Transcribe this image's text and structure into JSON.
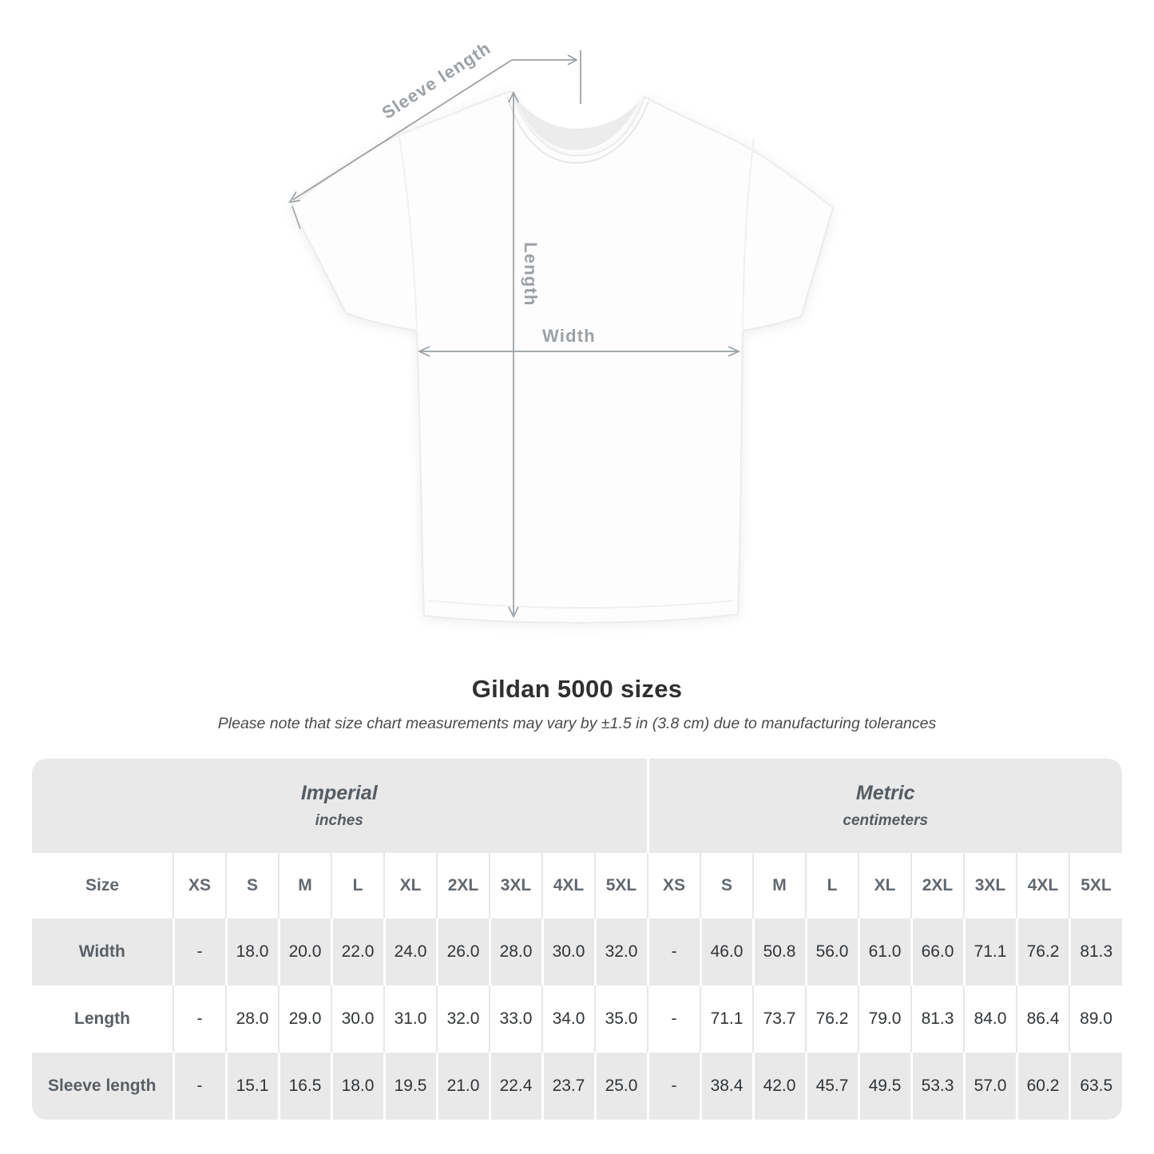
{
  "diagram": {
    "sleeve_length_label": "Sleeve length",
    "length_label": "Length",
    "width_label": "Width"
  },
  "title": "Gildan 5000 sizes",
  "subtitle": "Please note that size chart measurements may vary by ±1.5 in (3.8 cm) due to manufacturing tolerances",
  "table": {
    "corner_label": "Size",
    "unit_groups": [
      {
        "label": "Imperial",
        "sublabel": "inches"
      },
      {
        "label": "Metric",
        "sublabel": "centimeters"
      }
    ],
    "sizes": [
      "XS",
      "S",
      "M",
      "L",
      "XL",
      "2XL",
      "3XL",
      "4XL",
      "5XL"
    ],
    "rows": [
      {
        "label": "Width",
        "imperial": [
          "-",
          "18.0",
          "20.0",
          "22.0",
          "24.0",
          "26.0",
          "28.0",
          "30.0",
          "32.0"
        ],
        "metric": [
          "-",
          "46.0",
          "50.8",
          "56.0",
          "61.0",
          "66.0",
          "71.1",
          "76.2",
          "81.3"
        ]
      },
      {
        "label": "Length",
        "imperial": [
          "-",
          "28.0",
          "29.0",
          "30.0",
          "31.0",
          "32.0",
          "33.0",
          "34.0",
          "35.0"
        ],
        "metric": [
          "-",
          "71.1",
          "73.7",
          "76.2",
          "79.0",
          "81.3",
          "84.0",
          "86.4",
          "89.0"
        ]
      },
      {
        "label": "Sleeve length",
        "imperial": [
          "-",
          "15.1",
          "16.5",
          "18.0",
          "19.5",
          "21.0",
          "22.4",
          "23.7",
          "25.0"
        ],
        "metric": [
          "-",
          "38.4",
          "42.0",
          "45.7",
          "49.5",
          "53.3",
          "57.0",
          "60.2",
          "63.5"
        ]
      }
    ]
  },
  "colors": {
    "table_band": "#e9e9ea",
    "row_divider_on_band": "#ffffff",
    "row_divider_on_white": "#e7e7e8",
    "header_text": "#5d6368",
    "value_text": "#303437",
    "diagram_line": "#9aa0a4",
    "diagram_label": "#9da1a5"
  },
  "chart_data": {
    "type": "table",
    "title": "Gildan 5000 sizes",
    "note": "Please note that size chart measurements may vary by ±1.5 in (3.8 cm) due to manufacturing tolerances",
    "column_groups": [
      {
        "name": "Imperial",
        "unit": "inches"
      },
      {
        "name": "Metric",
        "unit": "centimeters"
      }
    ],
    "categories": [
      "XS",
      "S",
      "M",
      "L",
      "XL",
      "2XL",
      "3XL",
      "4XL",
      "5XL"
    ],
    "series": [
      {
        "name": "Width (in)",
        "values": [
          null,
          18.0,
          20.0,
          22.0,
          24.0,
          26.0,
          28.0,
          30.0,
          32.0
        ]
      },
      {
        "name": "Length (in)",
        "values": [
          null,
          28.0,
          29.0,
          30.0,
          31.0,
          32.0,
          33.0,
          34.0,
          35.0
        ]
      },
      {
        "name": "Sleeve length (in)",
        "values": [
          null,
          15.1,
          16.5,
          18.0,
          19.5,
          21.0,
          22.4,
          23.7,
          25.0
        ]
      },
      {
        "name": "Width (cm)",
        "values": [
          null,
          46.0,
          50.8,
          56.0,
          61.0,
          66.0,
          71.1,
          76.2,
          81.3
        ]
      },
      {
        "name": "Length (cm)",
        "values": [
          null,
          71.1,
          73.7,
          76.2,
          79.0,
          81.3,
          84.0,
          86.4,
          89.0
        ]
      },
      {
        "name": "Sleeve length (cm)",
        "values": [
          null,
          38.4,
          42.0,
          45.7,
          49.5,
          53.3,
          57.0,
          60.2,
          63.5
        ]
      }
    ]
  }
}
